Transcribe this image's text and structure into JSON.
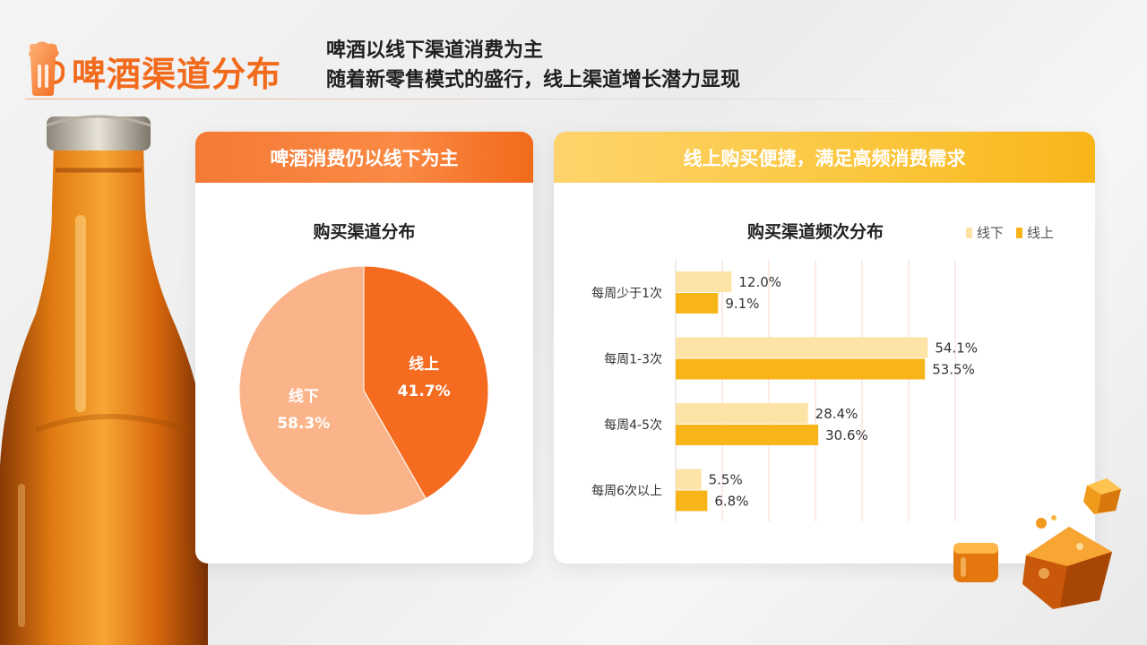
{
  "header": {
    "title": "啤酒渠道分布",
    "subtitle_line1": "啤酒以线下渠道消费为主",
    "subtitle_line2": "随着新零售模式的盛行，线上渠道增长潜力显现"
  },
  "left_panel": {
    "header": "啤酒消费仍以线下为主",
    "chart_title": "购买渠道分布"
  },
  "right_panel": {
    "header": "线上购买便捷，满足高频消费需求",
    "chart_title": "购买渠道频次分布",
    "legend": [
      "线下",
      "线上"
    ]
  },
  "colors": {
    "brand_orange": "#f26a1b",
    "offline_pie": "#fbb48a",
    "online_pie": "#f56c21",
    "offline_bar": "#fde3a6",
    "online_bar": "#f8b51a"
  },
  "chart_data": [
    {
      "type": "pie",
      "title": "购买渠道分布",
      "slices": [
        {
          "label": "线上",
          "value": 41.7,
          "display": "41.7%"
        },
        {
          "label": "线下",
          "value": 58.3,
          "display": "58.3%"
        }
      ]
    },
    {
      "type": "bar",
      "orientation": "horizontal",
      "title": "购买渠道频次分布",
      "categories": [
        "每周少于1次",
        "每周1-3次",
        "每周4-5次",
        "每周6次以上"
      ],
      "series": [
        {
          "name": "线下",
          "values": [
            12.0,
            54.1,
            28.4,
            5.5
          ],
          "labels": [
            "12.0%",
            "54.1%",
            "28.4%",
            "5.5%"
          ]
        },
        {
          "name": "线上",
          "values": [
            9.1,
            53.5,
            30.6,
            6.8
          ],
          "labels": [
            "9.1%",
            "53.5%",
            "30.6%",
            "6.8%"
          ]
        }
      ],
      "xlim": [
        0,
        60
      ],
      "grid": true,
      "legend_position": "top-right"
    }
  ]
}
